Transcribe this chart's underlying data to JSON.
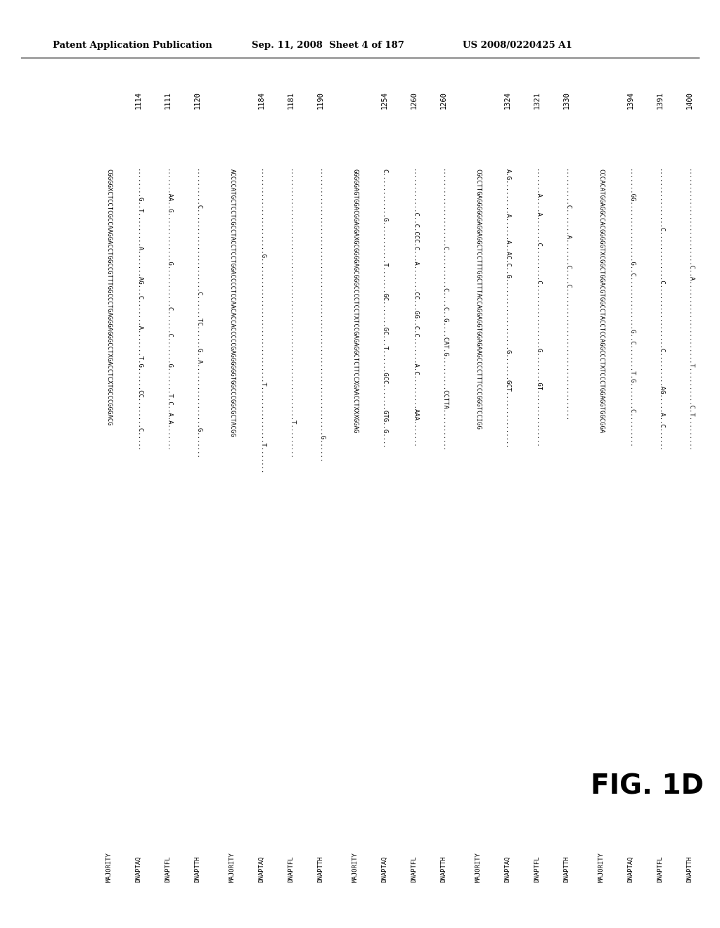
{
  "header_left": "Patent Application Publication",
  "header_mid": "Sep. 11, 2008  Sheet 4 of 187",
  "header_right": "US 2008/0220425 A1",
  "figure_label": "FIG. 1D",
  "background_color": "#ffffff",
  "text_color": "#000000",
  "blocks": [
    {
      "numbers": [
        "1114",
        "1111",
        "1120"
      ],
      "majority": "CGGGGXCTCCTCGCCAAGGACCTGGCCGTTTGGCCCTGAGGGAGGGCCTXGACCTCXTGCCCGGGACG",
      "seqs": [
        [
          "DNAPTAQ",
          "........G..T.........A.......AG...C.......A.......T.G......CC........C....."
        ],
        [
          "DNAPTFL",
          ".......AA..G.............G...........C......C.......G.......T.C..A.A......."
        ],
        [
          "DNAPTTH",
          "..........C......................C......TC......G..A.................G......."
        ]
      ]
    },
    {
      "numbers": [
        "1184",
        "1181",
        "1190"
      ],
      "majority": "ACCCCATGCTCCTCGCCTACCTCCTGGACCCCTCCAACACCACCCCCGAGGGGGGTGGCCCGGCGCTACGG",
      "seqs": [
        [
          "DNAPTAQ",
          ".......................G.................................T...............T......."
        ],
        [
          "DNAPTFL",
          "...................................................................T........."
        ],
        [
          "DNAPTTH",
          ".......................................................................G......"
        ]
      ]
    },
    {
      "numbers": [
        "1254",
        "1260",
        "1260"
      ],
      "majority": "GGGGGAGTGGACGGAGGAXGCGGGGAGCGGGCCCCTCCTXTCCGAGAGGCTCTTCCXGAACCTXXXGGAG",
      "seqs": [
        [
          "DNAPTAQ",
          "C............G...........T.......GC.......GC...T......GCC.......GTG..G...."
        ],
        [
          "DNAPTFL",
          "............C..C.CCC.C...A.......CC...GG..C.C.......A.C.........AAA......."
        ],
        [
          "DNAPTTH",
          ".....................C..........C....C..G....CAT.G.........CCTTA..........."
        ]
      ]
    },
    {
      "numbers": [
        "1324",
        "1321",
        "1330"
      ],
      "majority": "CGCCTTGAGGGGGGAGGAGGCTCCTTTGGCTTTACCAGGAGGTGGAGAAGCCCCTTTCCCGGGTCCIGG",
      "seqs": [
        [
          "DNAPTAQ",
          "A.G.........A......A..AC.C..G...................G.......GCT..............."
        ],
        [
          "DNAPTFL",
          ".......A....A.......C.........C.................G........GT..............."
        ],
        [
          "DNAPTTH",
          "..........C.......A.......C....C..................................."
        ]
      ]
    },
    {
      "numbers": [
        "1394",
        "1391",
        "1400"
      ],
      "majority": "CCCACATGGAGGCCACGGGGGTXCGGCTGGACGTGGCCTACCTCCAGGCCCTXTCCCTGGAGGTGGCGGA",
      "seqs": [
        [
          "DNAPTAQ",
          ".......GG................G..C..............G..C.......T.G.......C........."
        ],
        [
          "DNAPTFL",
          "................C.............C.................C.........AG.....A..C......"
        ],
        [
          "DNAPTTH",
          "..........................C..A......................T..........C.T........."
        ]
      ]
    }
  ]
}
